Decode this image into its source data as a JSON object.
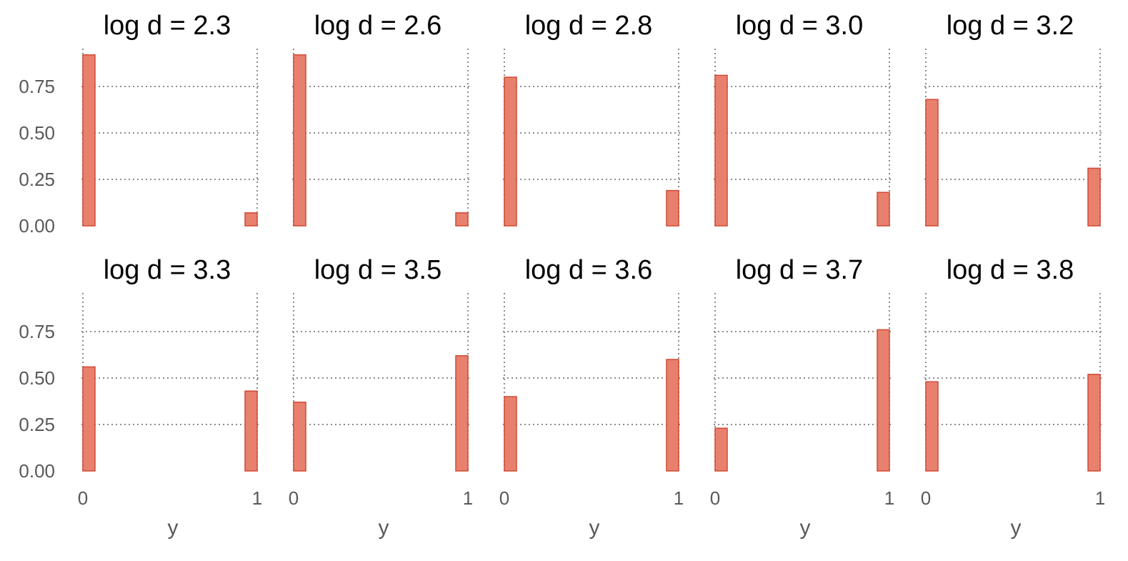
{
  "chart_data": {
    "type": "bar",
    "x_title": "y",
    "x_ticks": [
      "0",
      "1"
    ],
    "y_ticks": [
      "0.00",
      "0.25",
      "0.50",
      "0.75"
    ],
    "ylim": [
      0,
      0.95
    ],
    "grid": true,
    "bar_fill": "#e8806e",
    "bar_stroke": "#d04a35",
    "panels": [
      {
        "title": "log d = 2.3",
        "categories": [
          "0",
          "1"
        ],
        "values": [
          0.92,
          0.07
        ]
      },
      {
        "title": "log d = 2.6",
        "categories": [
          "0",
          "1"
        ],
        "values": [
          0.92,
          0.07
        ]
      },
      {
        "title": "log d = 2.8",
        "categories": [
          "0",
          "1"
        ],
        "values": [
          0.8,
          0.19
        ]
      },
      {
        "title": "log d = 3.0",
        "categories": [
          "0",
          "1"
        ],
        "values": [
          0.81,
          0.18
        ]
      },
      {
        "title": "log d = 3.2",
        "categories": [
          "0",
          "1"
        ],
        "values": [
          0.68,
          0.31
        ]
      },
      {
        "title": "log d = 3.3",
        "categories": [
          "0",
          "1"
        ],
        "values": [
          0.56,
          0.43
        ]
      },
      {
        "title": "log d = 3.5",
        "categories": [
          "0",
          "1"
        ],
        "values": [
          0.37,
          0.62
        ]
      },
      {
        "title": "log d = 3.6",
        "categories": [
          "0",
          "1"
        ],
        "values": [
          0.4,
          0.6
        ]
      },
      {
        "title": "log d = 3.7",
        "categories": [
          "0",
          "1"
        ],
        "values": [
          0.23,
          0.76
        ]
      },
      {
        "title": "log d = 3.8",
        "categories": [
          "0",
          "1"
        ],
        "values": [
          0.48,
          0.52
        ]
      }
    ]
  }
}
